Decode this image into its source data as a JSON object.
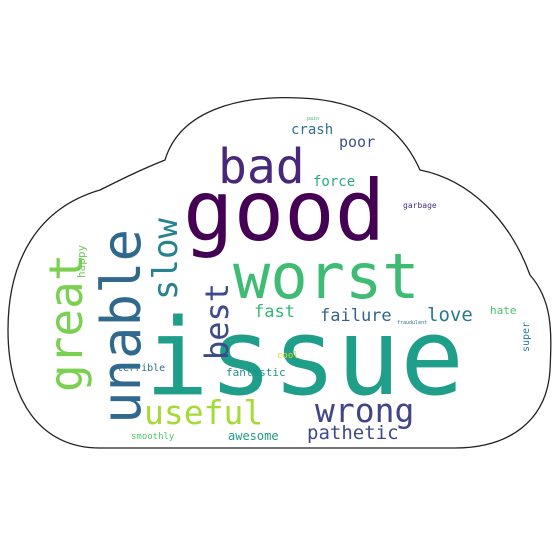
{
  "cloud": {
    "outline_color": "#222222",
    "fill_color": "#ffffff",
    "words": [
      {
        "text": "issue",
        "color": "#1f9e89"
      },
      {
        "text": "good",
        "color": "#440154"
      },
      {
        "text": "worst",
        "color": "#3fbc73"
      },
      {
        "text": "unable",
        "color": "#31688e"
      },
      {
        "text": "bad",
        "color": "#482878"
      },
      {
        "text": "great",
        "color": "#7ad151"
      },
      {
        "text": "slow",
        "color": "#26828e"
      },
      {
        "text": "best",
        "color": "#3e4a89"
      },
      {
        "text": "useful",
        "color": "#a5db36"
      },
      {
        "text": "wrong",
        "color": "#414487"
      },
      {
        "text": "pathetic",
        "color": "#3e4a89"
      },
      {
        "text": "love",
        "color": "#2a788e"
      },
      {
        "text": "failure",
        "color": "#33638d"
      },
      {
        "text": "fast",
        "color": "#35b779"
      },
      {
        "text": "poor",
        "color": "#3b528b"
      },
      {
        "text": "crash",
        "color": "#2c728e"
      },
      {
        "text": "force",
        "color": "#25ab82"
      },
      {
        "text": "awesome",
        "color": "#1f9a8a"
      },
      {
        "text": "fantastic",
        "color": "#21918c"
      },
      {
        "text": "happy",
        "color": "#6ccd5a"
      },
      {
        "text": "terrible",
        "color": "#2c728e"
      },
      {
        "text": "smoothly",
        "color": "#52c569"
      },
      {
        "text": "cool",
        "color": "#d0e11c"
      },
      {
        "text": "hate",
        "color": "#4ac16d"
      },
      {
        "text": "super",
        "color": "#287c8e"
      },
      {
        "text": "garbage",
        "color": "#46327e"
      },
      {
        "text": "fraudulent",
        "color": "#2d708e"
      },
      {
        "text": "pain",
        "color": "#3dbc74"
      }
    ]
  }
}
